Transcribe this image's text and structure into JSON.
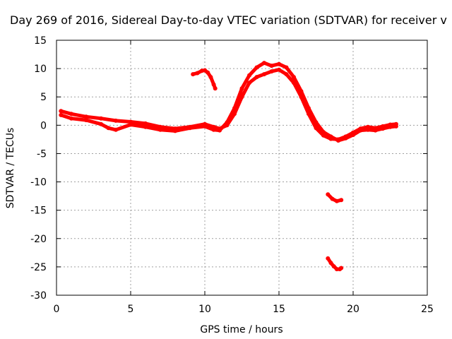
{
  "chart_data": {
    "type": "scatter",
    "title": "Day 269 of 2016, Sidereal Day-to-day VTEC variation (SDTVAR) for receiver v",
    "xlabel": "GPS time / hours",
    "ylabel": "SDTVAR / TECUs",
    "xlim": [
      0,
      25
    ],
    "ylim": [
      -30,
      15
    ],
    "x_ticks": [
      0,
      5,
      10,
      15,
      20,
      25
    ],
    "y_ticks": [
      15,
      10,
      5,
      0,
      -5,
      -10,
      -15,
      -20,
      -25,
      -30
    ],
    "grid": true,
    "legend": "none",
    "series": [
      {
        "name": "main-trace",
        "color": "#ff0000",
        "x": [
          0.3,
          1.0,
          2.0,
          3.0,
          4.0,
          5.0,
          6.0,
          7.0,
          8.0,
          9.0,
          10.0,
          10.6,
          11.0,
          11.5,
          12.0,
          12.5,
          13.0,
          13.5,
          14.0,
          14.5,
          15.0,
          15.5,
          16.0,
          16.5,
          17.0,
          17.5,
          18.0,
          18.5,
          19.0,
          19.5,
          20.0,
          20.5,
          21.0,
          21.5,
          22.0,
          22.5,
          22.9
        ],
        "y": [
          2.5,
          2.0,
          1.5,
          1.2,
          0.8,
          0.6,
          0.3,
          -0.3,
          -0.6,
          -0.3,
          0.2,
          -0.3,
          -0.6,
          0.0,
          2.0,
          5.0,
          7.5,
          8.5,
          9.0,
          9.5,
          9.8,
          9.0,
          7.5,
          5.0,
          2.0,
          -0.5,
          -1.8,
          -2.4,
          -2.5,
          -2.0,
          -1.3,
          -0.6,
          -0.3,
          -0.5,
          -0.2,
          0.1,
          0.2
        ]
      },
      {
        "name": "main-trace-spread",
        "color": "#ff0000",
        "x": [
          0.3,
          1.0,
          2.0,
          3.0,
          3.5,
          4.0,
          5.0,
          6.0,
          7.0,
          8.0,
          9.0,
          10.0,
          10.6,
          11.0,
          11.5,
          12.0,
          12.5,
          13.0,
          13.5,
          14.0,
          14.5,
          15.0,
          15.5,
          16.0,
          16.5,
          17.0,
          17.5,
          18.0,
          18.5,
          19.0,
          19.5,
          20.0,
          20.5,
          21.0,
          21.5,
          22.0,
          22.5,
          22.9
        ],
        "y": [
          1.8,
          1.2,
          0.9,
          0.2,
          -0.5,
          -0.8,
          0.1,
          -0.3,
          -0.8,
          -1.0,
          -0.5,
          -0.2,
          -0.8,
          -0.9,
          0.5,
          3.0,
          6.5,
          8.8,
          10.2,
          11.0,
          10.5,
          10.8,
          10.2,
          8.5,
          6.0,
          3.0,
          0.5,
          -1.2,
          -2.0,
          -2.7,
          -2.3,
          -1.7,
          -0.9,
          -0.8,
          -0.9,
          -0.6,
          -0.3,
          -0.2
        ]
      },
      {
        "name": "segment-near-10h",
        "color": "#ff0000",
        "x": [
          9.2,
          9.5,
          9.8,
          10.0,
          10.2,
          10.4,
          10.6,
          10.7
        ],
        "y": [
          9.0,
          9.2,
          9.6,
          9.7,
          9.3,
          8.5,
          7.2,
          6.5
        ]
      },
      {
        "name": "segment-near-18h-upper",
        "color": "#ff0000",
        "x": [
          18.3,
          18.6,
          18.9,
          19.2
        ],
        "y": [
          -12.2,
          -13.0,
          -13.4,
          -13.2
        ]
      },
      {
        "name": "segment-near-18h-lower",
        "color": "#ff0000",
        "x": [
          18.3,
          18.5,
          18.7,
          18.9,
          19.1,
          19.2
        ],
        "y": [
          -23.5,
          -24.3,
          -24.9,
          -25.4,
          -25.4,
          -25.2
        ]
      }
    ]
  }
}
